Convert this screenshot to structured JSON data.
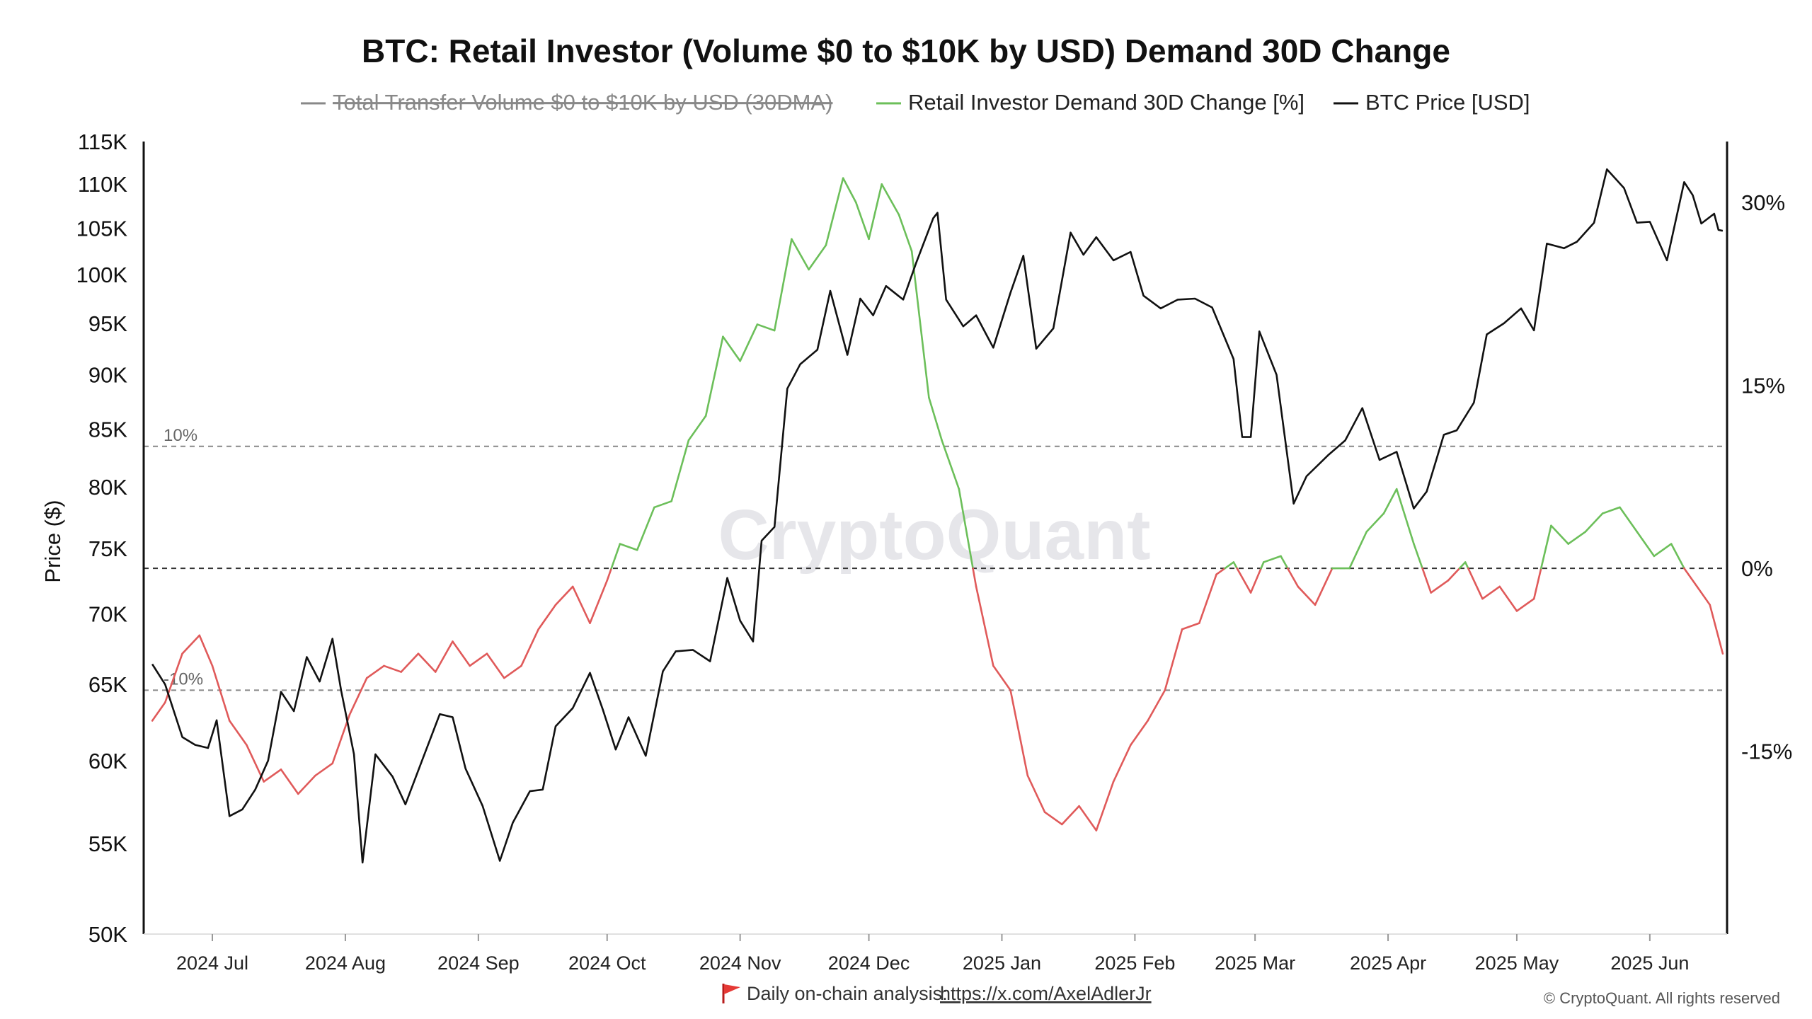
{
  "title": "BTC: Retail Investor (Volume $0 to $10K by USD) Demand 30D Change",
  "legend": [
    {
      "label": "Total Transfer Volume $0 to $10K by USD (30DMA)",
      "color": "#888888",
      "hidden": true
    },
    {
      "label": "Retail Investor Demand 30D Change [%]",
      "color": "#6cbf5a"
    },
    {
      "label": "BTC Price [USD]",
      "color": "#111111"
    }
  ],
  "watermark": "CryptoQuant",
  "footer": {
    "flag_icon": "red-flag-icon",
    "analysis_label": "Daily on-chain analysis:",
    "link": "https://x.com/AxelAdlerJr",
    "copyright": "© CryptoQuant. All rights reserved"
  },
  "colors": {
    "positive": "#6cbf5a",
    "negative": "#e05a5a",
    "price": "#111111",
    "grid": "#888888"
  },
  "chart_data": {
    "type": "line",
    "title": "BTC: Retail Investor (Volume $0 to $10K by USD) Demand 30D Change",
    "ylabel_left": "Price ($)",
    "y_left_scale": "log",
    "y_left_range": [
      50000,
      115000
    ],
    "y_left_ticks": [
      {
        "value": 50000,
        "label": "50K"
      },
      {
        "value": 55000,
        "label": "55K"
      },
      {
        "value": 60000,
        "label": "60K"
      },
      {
        "value": 65000,
        "label": "65K"
      },
      {
        "value": 70000,
        "label": "70K"
      },
      {
        "value": 75000,
        "label": "75K"
      },
      {
        "value": 80000,
        "label": "80K"
      },
      {
        "value": 85000,
        "label": "85K"
      },
      {
        "value": 90000,
        "label": "90K"
      },
      {
        "value": 95000,
        "label": "95K"
      },
      {
        "value": 100000,
        "label": "100K"
      },
      {
        "value": 105000,
        "label": "105K"
      },
      {
        "value": 110000,
        "label": "110K"
      },
      {
        "value": 115000,
        "label": "115K"
      }
    ],
    "y_right_range": [
      -30,
      35
    ],
    "y_right_ticks": [
      {
        "value": 30,
        "label": "30%"
      },
      {
        "value": 15,
        "label": "15%"
      },
      {
        "value": 0,
        "label": "0%"
      },
      {
        "value": -15,
        "label": "-15%"
      }
    ],
    "reference_lines": [
      {
        "value": 10,
        "label": "10%"
      },
      {
        "value": 0,
        "label": ""
      },
      {
        "value": -10,
        "label": "-10%"
      }
    ],
    "x_range": [
      "2024-06-15",
      "2025-06-19"
    ],
    "x_ticks": [
      {
        "date": "2024-07-01",
        "label": "2024 Jul"
      },
      {
        "date": "2024-08-01",
        "label": "2024 Aug"
      },
      {
        "date": "2024-09-01",
        "label": "2024 Sep"
      },
      {
        "date": "2024-10-01",
        "label": "2024 Oct"
      },
      {
        "date": "2024-11-01",
        "label": "2024 Nov"
      },
      {
        "date": "2024-12-01",
        "label": "2024 Dec"
      },
      {
        "date": "2025-01-01",
        "label": "2025 Jan"
      },
      {
        "date": "2025-02-01",
        "label": "2025 Feb"
      },
      {
        "date": "2025-03-01",
        "label": "2025 Mar"
      },
      {
        "date": "2025-04-01",
        "label": "2025 Apr"
      },
      {
        "date": "2025-05-01",
        "label": "2025 May"
      },
      {
        "date": "2025-06-01",
        "label": "2025 Jun"
      }
    ],
    "series": [
      {
        "name": "BTC Price [USD]",
        "axis": "left",
        "points": [
          [
            "2024-06-17",
            66400
          ],
          [
            "2024-06-20",
            65000
          ],
          [
            "2024-06-24",
            61500
          ],
          [
            "2024-06-27",
            61000
          ],
          [
            "2024-06-30",
            60800
          ],
          [
            "2024-07-02",
            62600
          ],
          [
            "2024-07-05",
            56600
          ],
          [
            "2024-07-08",
            57000
          ],
          [
            "2024-07-11",
            58200
          ],
          [
            "2024-07-14",
            60000
          ],
          [
            "2024-07-17",
            64500
          ],
          [
            "2024-07-20",
            63200
          ],
          [
            "2024-07-23",
            66900
          ],
          [
            "2024-07-26",
            65200
          ],
          [
            "2024-07-29",
            68200
          ],
          [
            "2024-07-31",
            64600
          ],
          [
            "2024-08-03",
            60400
          ],
          [
            "2024-08-05",
            53900
          ],
          [
            "2024-08-08",
            60400
          ],
          [
            "2024-08-12",
            59000
          ],
          [
            "2024-08-15",
            57300
          ],
          [
            "2024-08-19",
            60100
          ],
          [
            "2024-08-23",
            63000
          ],
          [
            "2024-08-26",
            62800
          ],
          [
            "2024-08-29",
            59500
          ],
          [
            "2024-09-02",
            57200
          ],
          [
            "2024-09-06",
            54000
          ],
          [
            "2024-09-09",
            56200
          ],
          [
            "2024-09-13",
            58100
          ],
          [
            "2024-09-16",
            58200
          ],
          [
            "2024-09-19",
            62200
          ],
          [
            "2024-09-23",
            63400
          ],
          [
            "2024-09-27",
            65800
          ],
          [
            "2024-09-30",
            63300
          ],
          [
            "2024-10-03",
            60700
          ],
          [
            "2024-10-06",
            62800
          ],
          [
            "2024-10-10",
            60300
          ],
          [
            "2024-10-14",
            65900
          ],
          [
            "2024-10-17",
            67300
          ],
          [
            "2024-10-21",
            67400
          ],
          [
            "2024-10-25",
            66600
          ],
          [
            "2024-10-29",
            72700
          ],
          [
            "2024-11-01",
            69500
          ],
          [
            "2024-11-04",
            68000
          ],
          [
            "2024-11-06",
            75600
          ],
          [
            "2024-11-09",
            76700
          ],
          [
            "2024-11-12",
            88700
          ],
          [
            "2024-11-15",
            91000
          ],
          [
            "2024-11-19",
            92400
          ],
          [
            "2024-11-22",
            98300
          ],
          [
            "2024-11-26",
            91900
          ],
          [
            "2024-11-29",
            97500
          ],
          [
            "2024-12-02",
            95800
          ],
          [
            "2024-12-05",
            98800
          ],
          [
            "2024-12-09",
            97400
          ],
          [
            "2024-12-12",
            101200
          ],
          [
            "2024-12-16",
            106100
          ],
          [
            "2024-12-17",
            106700
          ],
          [
            "2024-12-19",
            97400
          ],
          [
            "2024-12-23",
            94700
          ],
          [
            "2024-12-26",
            95800
          ],
          [
            "2024-12-30",
            92600
          ],
          [
            "2025-01-03",
            98100
          ],
          [
            "2025-01-06",
            102000
          ],
          [
            "2025-01-09",
            92500
          ],
          [
            "2025-01-13",
            94500
          ],
          [
            "2025-01-17",
            104500
          ],
          [
            "2025-01-20",
            102100
          ],
          [
            "2025-01-23",
            104000
          ],
          [
            "2025-01-27",
            101500
          ],
          [
            "2025-01-31",
            102400
          ],
          [
            "2025-02-03",
            97800
          ],
          [
            "2025-02-07",
            96500
          ],
          [
            "2025-02-11",
            97400
          ],
          [
            "2025-02-15",
            97500
          ],
          [
            "2025-02-19",
            96600
          ],
          [
            "2025-02-24",
            91500
          ],
          [
            "2025-02-26",
            84300
          ],
          [
            "2025-02-28",
            84300
          ],
          [
            "2025-03-02",
            94200
          ],
          [
            "2025-03-06",
            90000
          ],
          [
            "2025-03-10",
            78600
          ],
          [
            "2025-03-13",
            80900
          ],
          [
            "2025-03-18",
            82700
          ],
          [
            "2025-03-22",
            84000
          ],
          [
            "2025-03-26",
            86900
          ],
          [
            "2025-03-30",
            82300
          ],
          [
            "2025-04-03",
            83000
          ],
          [
            "2025-04-07",
            78200
          ],
          [
            "2025-04-10",
            79600
          ],
          [
            "2025-04-14",
            84500
          ],
          [
            "2025-04-17",
            84900
          ],
          [
            "2025-04-21",
            87400
          ],
          [
            "2025-04-24",
            93900
          ],
          [
            "2025-04-28",
            95000
          ],
          [
            "2025-05-02",
            96500
          ],
          [
            "2025-05-05",
            94300
          ],
          [
            "2025-05-08",
            103300
          ],
          [
            "2025-05-12",
            102800
          ],
          [
            "2025-05-15",
            103500
          ],
          [
            "2025-05-19",
            105600
          ],
          [
            "2025-05-22",
            111700
          ],
          [
            "2025-05-26",
            109500
          ],
          [
            "2025-05-29",
            105600
          ],
          [
            "2025-06-01",
            105700
          ],
          [
            "2025-06-05",
            101500
          ],
          [
            "2025-06-09",
            110200
          ],
          [
            "2025-06-11",
            108700
          ],
          [
            "2025-06-13",
            105500
          ],
          [
            "2025-06-16",
            106600
          ],
          [
            "2025-06-17",
            104800
          ],
          [
            "2025-06-18",
            104700
          ]
        ]
      },
      {
        "name": "Retail Investor Demand 30D Change [%]",
        "axis": "right",
        "points": [
          [
            "2024-06-17",
            -12.5
          ],
          [
            "2024-06-20",
            -11.0
          ],
          [
            "2024-06-24",
            -7.0
          ],
          [
            "2024-06-28",
            -5.5
          ],
          [
            "2024-07-01",
            -8.0
          ],
          [
            "2024-07-05",
            -12.5
          ],
          [
            "2024-07-09",
            -14.5
          ],
          [
            "2024-07-13",
            -17.5
          ],
          [
            "2024-07-17",
            -16.5
          ],
          [
            "2024-07-21",
            -18.5
          ],
          [
            "2024-07-25",
            -17.0
          ],
          [
            "2024-07-29",
            -16.0
          ],
          [
            "2024-08-02",
            -12.0
          ],
          [
            "2024-08-06",
            -9.0
          ],
          [
            "2024-08-10",
            -8.0
          ],
          [
            "2024-08-14",
            -8.5
          ],
          [
            "2024-08-18",
            -7.0
          ],
          [
            "2024-08-22",
            -8.5
          ],
          [
            "2024-08-26",
            -6.0
          ],
          [
            "2024-08-30",
            -8.0
          ],
          [
            "2024-09-03",
            -7.0
          ],
          [
            "2024-09-07",
            -9.0
          ],
          [
            "2024-09-11",
            -8.0
          ],
          [
            "2024-09-15",
            -5.0
          ],
          [
            "2024-09-19",
            -3.0
          ],
          [
            "2024-09-23",
            -1.5
          ],
          [
            "2024-09-27",
            -4.5
          ],
          [
            "2024-10-01",
            -1.0
          ],
          [
            "2024-10-04",
            2.0
          ],
          [
            "2024-10-08",
            1.5
          ],
          [
            "2024-10-12",
            5.0
          ],
          [
            "2024-10-16",
            5.5
          ],
          [
            "2024-10-20",
            10.5
          ],
          [
            "2024-10-24",
            12.5
          ],
          [
            "2024-10-28",
            19.0
          ],
          [
            "2024-11-01",
            17.0
          ],
          [
            "2024-11-05",
            20.0
          ],
          [
            "2024-11-09",
            19.5
          ],
          [
            "2024-11-13",
            27.0
          ],
          [
            "2024-11-17",
            24.5
          ],
          [
            "2024-11-21",
            26.5
          ],
          [
            "2024-11-25",
            32.0
          ],
          [
            "2024-11-28",
            30.0
          ],
          [
            "2024-12-01",
            27.0
          ],
          [
            "2024-12-04",
            31.5
          ],
          [
            "2024-12-08",
            29.0
          ],
          [
            "2024-12-11",
            26.0
          ],
          [
            "2024-12-15",
            14.0
          ],
          [
            "2024-12-18",
            10.5
          ],
          [
            "2024-12-22",
            6.5
          ],
          [
            "2024-12-26",
            -1.5
          ],
          [
            "2024-12-30",
            -8.0
          ],
          [
            "2025-01-03",
            -10.0
          ],
          [
            "2025-01-07",
            -17.0
          ],
          [
            "2025-01-11",
            -20.0
          ],
          [
            "2025-01-15",
            -21.0
          ],
          [
            "2025-01-19",
            -19.5
          ],
          [
            "2025-01-23",
            -21.5
          ],
          [
            "2025-01-27",
            -17.5
          ],
          [
            "2025-01-31",
            -14.5
          ],
          [
            "2025-02-04",
            -12.5
          ],
          [
            "2025-02-08",
            -10.0
          ],
          [
            "2025-02-12",
            -5.0
          ],
          [
            "2025-02-16",
            -4.5
          ],
          [
            "2025-02-20",
            -0.5
          ],
          [
            "2025-02-24",
            0.5
          ],
          [
            "2025-02-28",
            -2.0
          ],
          [
            "2025-03-03",
            0.5
          ],
          [
            "2025-03-07",
            1.0
          ],
          [
            "2025-03-11",
            -1.5
          ],
          [
            "2025-03-15",
            -3.0
          ],
          [
            "2025-03-19",
            0.0
          ],
          [
            "2025-03-23",
            0.0
          ],
          [
            "2025-03-27",
            3.0
          ],
          [
            "2025-03-31",
            4.5
          ],
          [
            "2025-04-03",
            6.5
          ],
          [
            "2025-04-07",
            2.0
          ],
          [
            "2025-04-11",
            -2.0
          ],
          [
            "2025-04-15",
            -1.0
          ],
          [
            "2025-04-19",
            0.5
          ],
          [
            "2025-04-23",
            -2.5
          ],
          [
            "2025-04-27",
            -1.5
          ],
          [
            "2025-05-01",
            -3.5
          ],
          [
            "2025-05-05",
            -2.5
          ],
          [
            "2025-05-09",
            3.5
          ],
          [
            "2025-05-13",
            2.0
          ],
          [
            "2025-05-17",
            3.0
          ],
          [
            "2025-05-21",
            4.5
          ],
          [
            "2025-05-25",
            5.0
          ],
          [
            "2025-05-29",
            3.0
          ],
          [
            "2025-06-02",
            1.0
          ],
          [
            "2025-06-06",
            2.0
          ],
          [
            "2025-06-09",
            0.0
          ],
          [
            "2025-06-12",
            -1.5
          ],
          [
            "2025-06-15",
            -3.0
          ],
          [
            "2025-06-18",
            -7.0
          ]
        ]
      }
    ]
  }
}
